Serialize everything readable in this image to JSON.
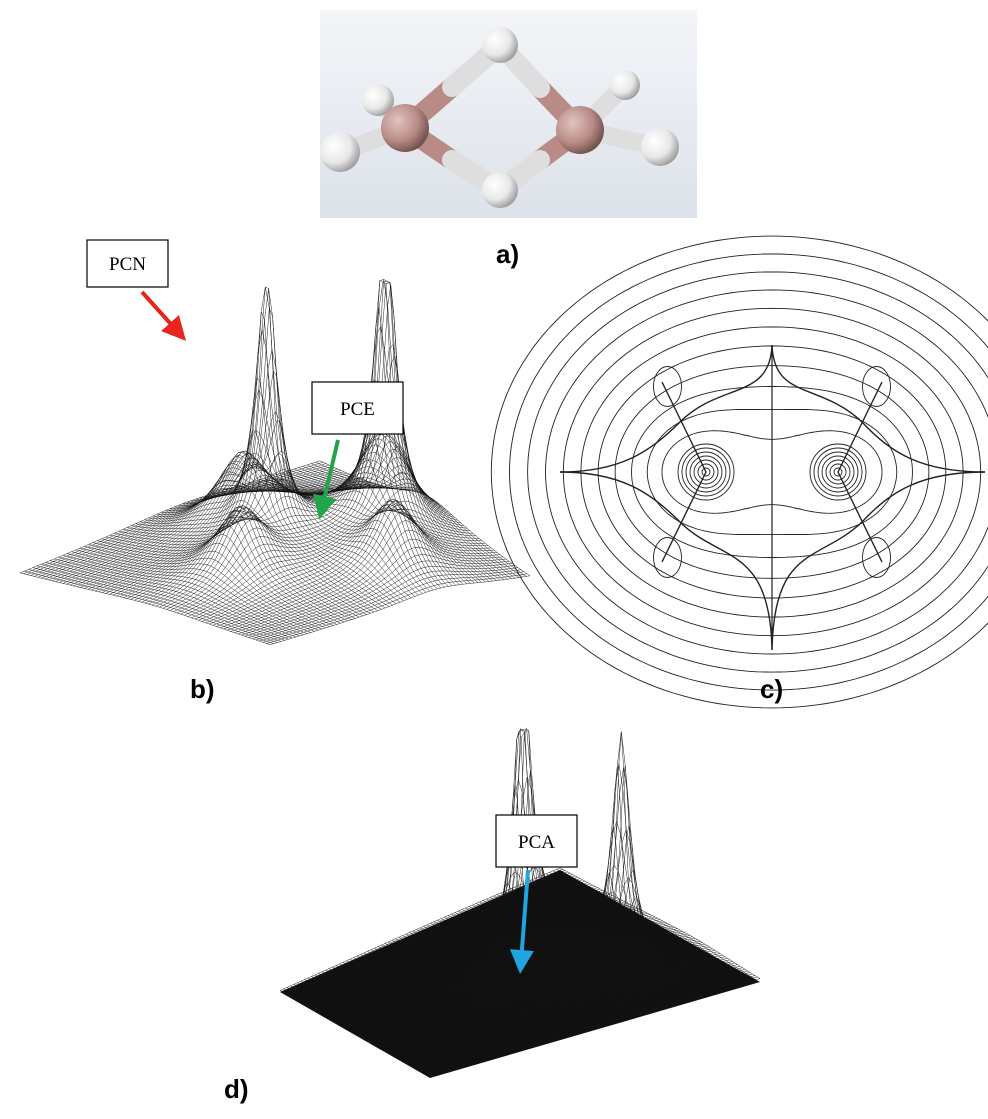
{
  "panels": [
    {
      "label": "a)"
    },
    {
      "label": "b)",
      "callouts": [
        "PCN",
        "PCE"
      ]
    },
    {
      "label": "c)"
    },
    {
      "label": "d)",
      "callouts": [
        "PCA"
      ]
    }
  ]
}
